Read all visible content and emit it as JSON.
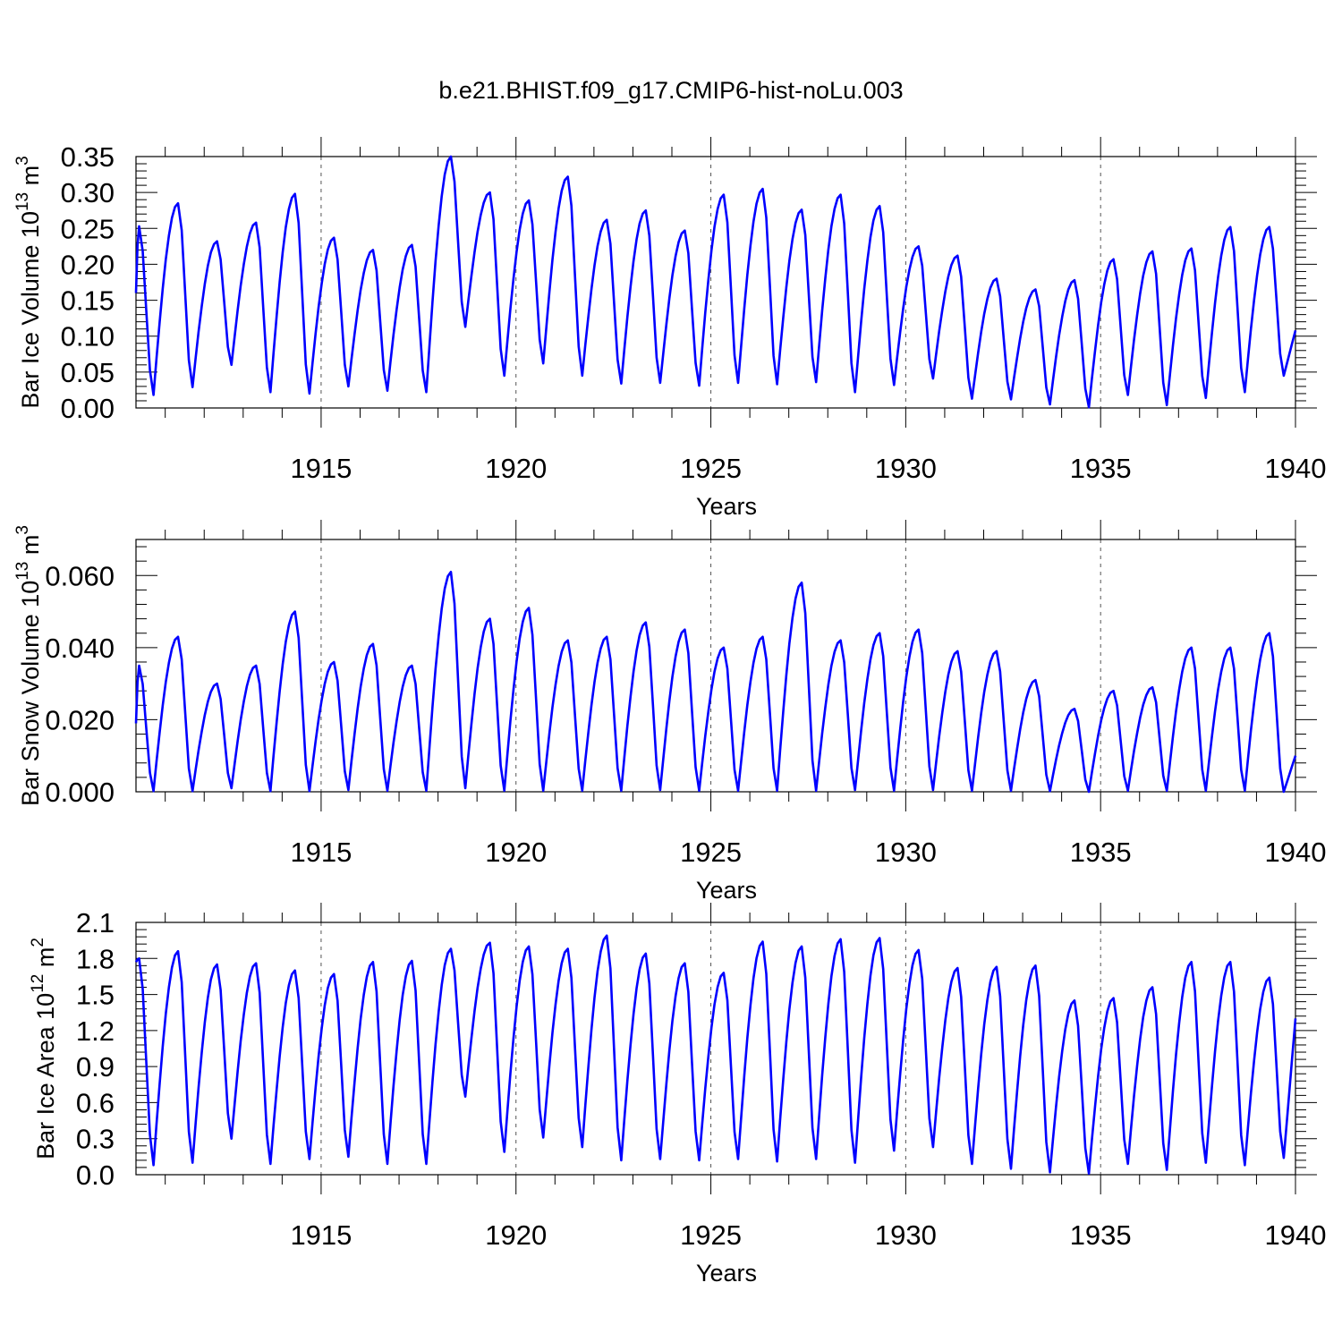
{
  "title": "b.e21.BHIST.f09_g17.CMIP6-hist-noLu.003",
  "colors": {
    "series": "#0000ff",
    "axis": "#000000",
    "gridline": "#555555"
  },
  "chart_data": [
    {
      "type": "line",
      "ylabel": "Bar Ice Volume 10",
      "ylabel_exp": "13",
      "ylabel_unit": " m",
      "ylabel_unit_exp": "3",
      "xlabel": "Years",
      "xlim": [
        1910.25,
        1940
      ],
      "ylim": [
        0,
        0.35
      ],
      "yticks": [
        "0.00",
        "0.05",
        "0.10",
        "0.15",
        "0.20",
        "0.25",
        "0.30",
        "0.35"
      ],
      "xticks": [
        "1915",
        "1920",
        "1925",
        "1930",
        "1935",
        "1940"
      ],
      "grid_x": [
        1915,
        1920,
        1925,
        1930,
        1935
      ],
      "peaks": [
        0.253,
        0.285,
        0.232,
        0.258,
        0.298,
        0.237,
        0.22,
        0.227,
        0.35,
        0.3,
        0.289,
        0.322,
        0.262,
        0.275,
        0.247,
        0.297,
        0.305,
        0.276,
        0.297,
        0.281,
        0.225,
        0.212,
        0.18,
        0.165,
        0.178,
        0.207,
        0.218,
        0.222,
        0.252
      ],
      "troughs": [
        0.018,
        0.029,
        0.06,
        0.022,
        0.02,
        0.03,
        0.024,
        0.022,
        0.113,
        0.045,
        0.062,
        0.045,
        0.034,
        0.035,
        0.031,
        0.035,
        0.033,
        0.036,
        0.022,
        0.032,
        0.041,
        0.013,
        0.012,
        0.005,
        0.001,
        0.018,
        0.004,
        0.014,
        0.022,
        0.045
      ],
      "start": 0.16,
      "end": 0.108
    },
    {
      "type": "line",
      "ylabel": "Bar Snow Volume 10",
      "ylabel_exp": "13",
      "ylabel_unit": " m",
      "ylabel_unit_exp": "3",
      "xlabel": "Years",
      "xlim": [
        1910.25,
        1940
      ],
      "ylim": [
        0,
        0.07
      ],
      "yticks": [
        "0.000",
        "0.020",
        "0.040",
        "0.060"
      ],
      "ytick_values": [
        0,
        0.02,
        0.04,
        0.06
      ],
      "xticks": [
        "1915",
        "1920",
        "1925",
        "1930",
        "1935",
        "1940"
      ],
      "grid_x": [
        1915,
        1920,
        1925,
        1930,
        1935
      ],
      "peaks": [
        0.035,
        0.043,
        0.03,
        0.035,
        0.05,
        0.036,
        0.041,
        0.035,
        0.061,
        0.048,
        0.051,
        0.042,
        0.043,
        0.047,
        0.045,
        0.04,
        0.043,
        0.058,
        0.042,
        0.044,
        0.045,
        0.039,
        0.039,
        0.031,
        0.023,
        0.028,
        0.029,
        0.04,
        0.04,
        0.044
      ],
      "troughs": [
        0.0002,
        0.0002,
        0.001,
        0.0002,
        0.0002,
        0.0005,
        0.0003,
        0.0003,
        0.001,
        0.0003,
        0.0003,
        0.0003,
        0.0003,
        0.0005,
        0.0003,
        0.0003,
        0.0003,
        0.0003,
        0.0005,
        0.0003,
        0.0005,
        0.0003,
        0.0003,
        0.0002,
        0.0,
        0.0003,
        0.0003,
        0.0003,
        0.0003,
        0.0
      ],
      "start": 0.019,
      "end": 0.01
    },
    {
      "type": "line",
      "ylabel": "Bar Ice Area 10",
      "ylabel_exp": "12",
      "ylabel_unit": " m",
      "ylabel_unit_exp": "2",
      "xlabel": "Years",
      "xlim": [
        1910.25,
        1940
      ],
      "ylim": [
        0,
        2.1
      ],
      "yticks": [
        "0.0",
        "0.3",
        "0.6",
        "0.9",
        "1.2",
        "1.5",
        "1.8",
        "2.1"
      ],
      "xticks": [
        "1915",
        "1920",
        "1925",
        "1930",
        "1935",
        "1940"
      ],
      "grid_x": [
        1915,
        1920,
        1925,
        1930,
        1935
      ],
      "peaks": [
        1.8,
        1.86,
        1.75,
        1.76,
        1.7,
        1.67,
        1.77,
        1.78,
        1.88,
        1.93,
        1.9,
        1.88,
        1.99,
        1.84,
        1.76,
        1.68,
        1.94,
        1.9,
        1.96,
        1.97,
        1.87,
        1.72,
        1.73,
        1.74,
        1.45,
        1.47,
        1.56,
        1.77,
        1.77,
        1.64
      ],
      "troughs": [
        0.08,
        0.1,
        0.3,
        0.09,
        0.13,
        0.15,
        0.09,
        0.09,
        0.65,
        0.19,
        0.31,
        0.23,
        0.12,
        0.13,
        0.12,
        0.13,
        0.11,
        0.13,
        0.1,
        0.2,
        0.23,
        0.09,
        0.05,
        0.02,
        0.01,
        0.09,
        0.04,
        0.1,
        0.08,
        0.14
      ],
      "start": 1.77,
      "end": 1.3
    }
  ]
}
